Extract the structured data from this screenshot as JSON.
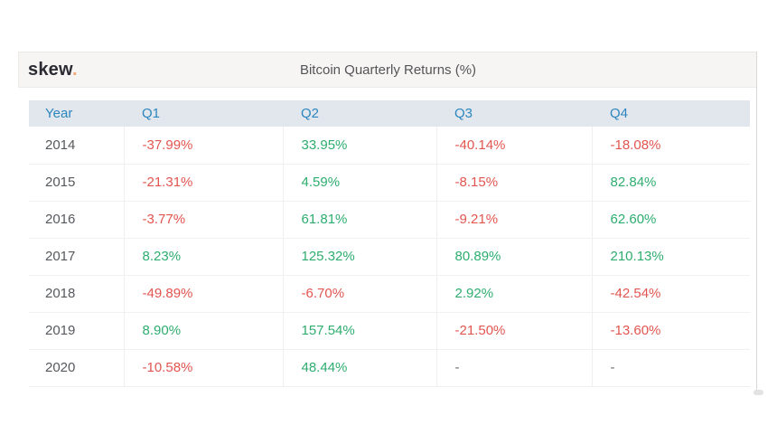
{
  "brand": {
    "name": "skew",
    "dot": "."
  },
  "header": {
    "title": "Bitcoin Quarterly Returns (%)"
  },
  "colors": {
    "positive": "#2ead6f",
    "negative": "#e25550",
    "dash": "#6e6e6e",
    "header_text": "#2c86be",
    "header_bg": "#e2e7ee",
    "logo_dot": "#f2a878"
  },
  "chart_data": {
    "type": "table",
    "title": "Bitcoin Quarterly Returns (%)",
    "columns": [
      "Year",
      "Q1",
      "Q2",
      "Q3",
      "Q4"
    ],
    "rows": [
      [
        "2014",
        "-37.99%",
        "33.95%",
        "-40.14%",
        "-18.08%"
      ],
      [
        "2015",
        "-21.31%",
        "4.59%",
        "-8.15%",
        "82.84%"
      ],
      [
        "2016",
        "-3.77%",
        "61.81%",
        "-9.21%",
        "62.60%"
      ],
      [
        "2017",
        "8.23%",
        "125.32%",
        "80.89%",
        "210.13%"
      ],
      [
        "2018",
        "-49.89%",
        "-6.70%",
        "2.92%",
        "-42.54%"
      ],
      [
        "2019",
        "8.90%",
        "157.54%",
        "-21.50%",
        "-13.60%"
      ],
      [
        "2020",
        "-10.58%",
        "48.44%",
        "-",
        "-"
      ]
    ],
    "value_color_rule": "negative values red, positive values green, missing values shown as dash"
  }
}
